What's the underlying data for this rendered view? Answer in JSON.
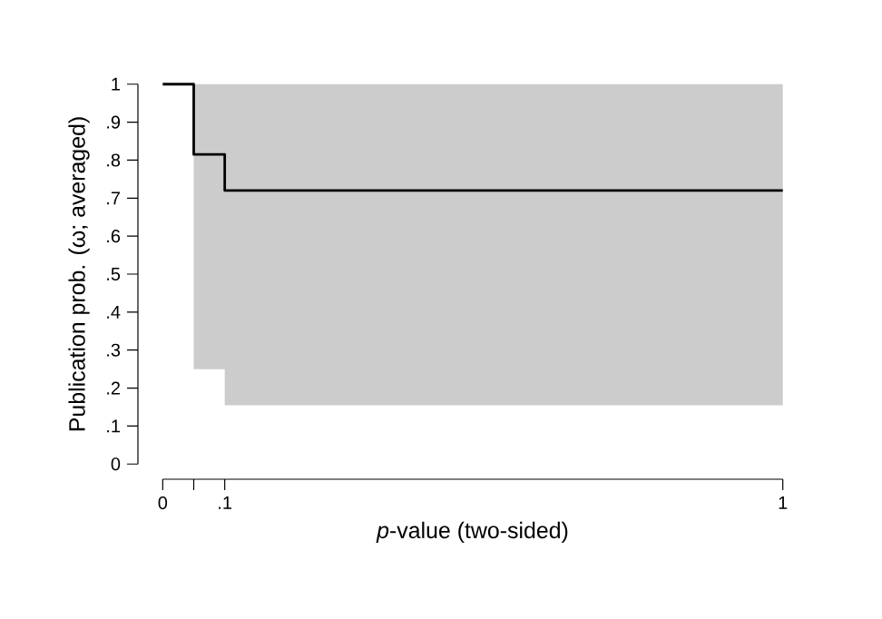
{
  "chart_data": {
    "type": "step",
    "xlabel": "*p*-value (two-sided)",
    "ylabel": "Publication prob. (ω; averaged)",
    "x": [
      0,
      0.05,
      0.1,
      1
    ],
    "series": [
      {
        "color": "#000000",
        "values": [
          1,
          0.815,
          0.72,
          0.72
        ],
        "lower": [
          1,
          0.25,
          0.155,
          0.155
        ],
        "upper": [
          1,
          1,
          1,
          1
        ]
      }
    ],
    "xlim": [
      0,
      1
    ],
    "ylim": [
      0,
      1
    ],
    "xticks": [
      0,
      {
        "value": 0.05,
        "label": null
      },
      {
        "value": 0.1,
        "label": ".1"
      },
      1
    ],
    "yticks": [
      0,
      {
        "value": 0.1,
        "label": ".1"
      },
      {
        "value": 0.2,
        "label": ".2"
      },
      {
        "value": 0.3,
        "label": ".3"
      },
      {
        "value": 0.4,
        "label": ".4"
      },
      {
        "value": 0.5,
        "label": ".5"
      },
      {
        "value": 0.6,
        "label": ".6"
      },
      {
        "value": 0.7,
        "label": ".7"
      },
      {
        "value": 0.8,
        "label": ".8"
      },
      {
        "value": 0.9,
        "label": ".9"
      },
      1
    ]
  }
}
